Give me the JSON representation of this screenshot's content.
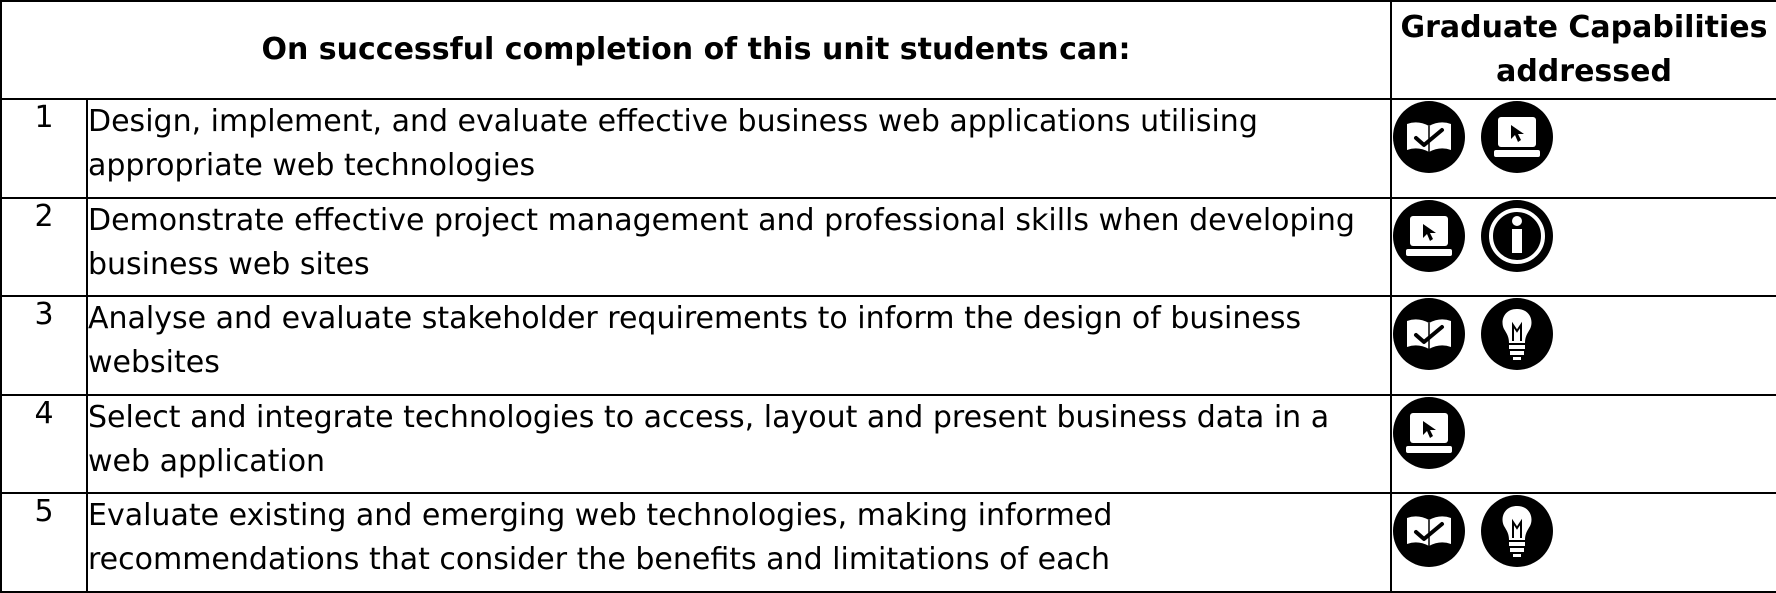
{
  "header": {
    "outcomes_heading": "On successful completion of this unit students can:",
    "capabilities_heading": "Graduate Capabilities addressed"
  },
  "rows": [
    {
      "number": "1",
      "text": "Design, implement, and evaluate effective business web applications utilising appropriate web technologies",
      "icons": [
        "open-book-check-icon",
        "laptop-cursor-icon"
      ]
    },
    {
      "number": "2",
      "text": "Demonstrate effective project management and professional skills when developing business web sites",
      "icons": [
        "laptop-cursor-icon",
        "information-icon"
      ]
    },
    {
      "number": "3",
      "text": "Analyse and evaluate stakeholder requirements to inform the design of business websites",
      "icons": [
        "open-book-check-icon",
        "lightbulb-icon"
      ]
    },
    {
      "number": "4",
      "text": "Select and integrate technologies to access, layout and present business data in a web application",
      "icons": [
        "laptop-cursor-icon"
      ]
    },
    {
      "number": "5",
      "text": "Evaluate existing and emerging web technologies, making informed recommendations that consider the benefits and limitations of each",
      "icons": [
        "open-book-check-icon",
        "lightbulb-icon"
      ]
    }
  ]
}
